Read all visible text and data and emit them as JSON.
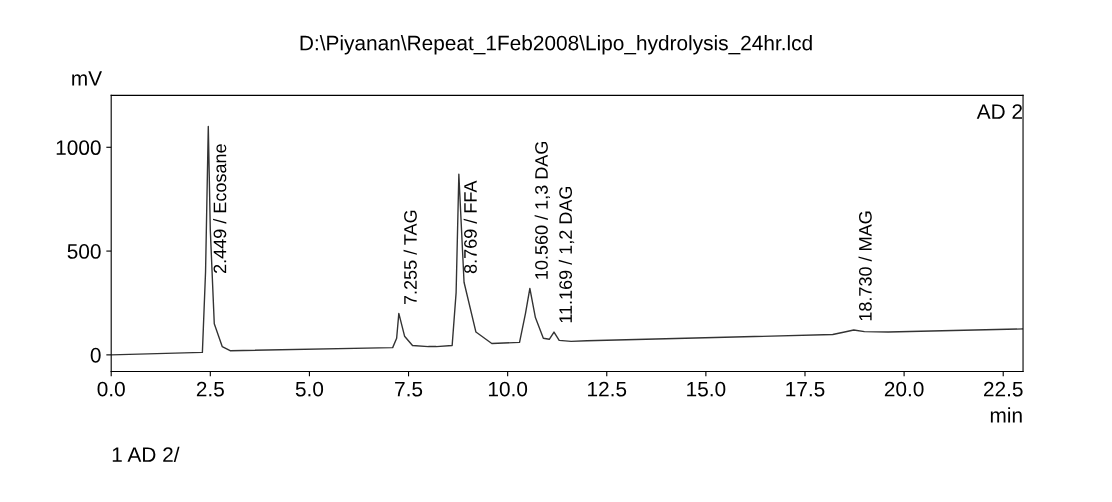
{
  "chart_data": {
    "type": "line",
    "title": "D:\\Piyanan\\Repeat_1Feb2008\\Lipo_hydrolysis_24hr.lcd",
    "xlabel": "min",
    "ylabel": "mV",
    "x": [
      0,
      2.3,
      2.38,
      2.449,
      2.5,
      2.6,
      2.8,
      3.0,
      7.1,
      7.2,
      7.255,
      7.4,
      7.6,
      8.0,
      8.2,
      8.6,
      8.7,
      8.769,
      8.9,
      9.2,
      9.6,
      10.3,
      10.45,
      10.56,
      10.7,
      10.9,
      11.05,
      11.169,
      11.3,
      11.6,
      12,
      18.2,
      18.5,
      18.73,
      19.0,
      19.6,
      23
    ],
    "series": [
      {
        "color": "#333333",
        "values": [
          0,
          12,
          400,
          1100,
          600,
          150,
          40,
          20,
          35,
          80,
          200,
          90,
          45,
          40,
          40,
          45,
          300,
          870,
          350,
          110,
          55,
          60,
          200,
          320,
          180,
          80,
          75,
          110,
          70,
          65,
          68,
          98,
          110,
          120,
          112,
          110,
          125
        ]
      }
    ],
    "xlim": [
      0,
      23
    ],
    "ylim": [
      -80,
      1250
    ],
    "xticks": [
      {
        "value": 0,
        "label": "0.0"
      },
      2.5,
      {
        "value": 5,
        "label": "5.0"
      },
      7.5,
      {
        "value": 10,
        "label": "10.0"
      },
      12.5,
      {
        "value": 15,
        "label": "15.0"
      },
      17.5,
      {
        "value": 20,
        "label": "20.0"
      },
      22.5
    ],
    "yticks": [
      0,
      500,
      1000
    ],
    "grid": false,
    "legend": false,
    "marker": "none",
    "line_style": "solid",
    "annotations": [
      {
        "text": "2.449 / Ecosane",
        "x": 2.449,
        "y": 1100
      },
      {
        "text": "7.255 / TAG",
        "x": 7.255,
        "y": 200
      },
      {
        "text": "8.769 / FFA",
        "x": 8.769,
        "y": 870
      },
      {
        "text": "10.560 / 1,3 DAG",
        "x": 10.56,
        "y": 320
      },
      {
        "text": "11.169 / 1,2 DAG",
        "x": 11.169,
        "y": 110
      },
      {
        "text": "18.730 / MAG",
        "x": 18.73,
        "y": 120
      },
      "AD 2",
      "1 AD 2/"
    ]
  }
}
